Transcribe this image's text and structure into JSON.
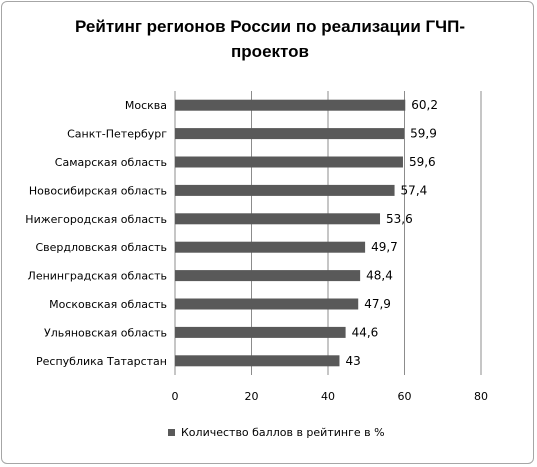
{
  "chart_data": {
    "type": "bar",
    "orientation": "horizontal",
    "title": "Рейтинг регионов России по реализации ГЧП-проектов",
    "title_lines": [
      "Рейтинг регионов России по реализации ГЧП-",
      "проектов"
    ],
    "categories": [
      "Москва",
      "Санкт-Петербург",
      "Самарская область",
      "Новосибирская область",
      "Нижегородская область",
      "Свердловская область",
      "Ленинградская область",
      "Московская область",
      "Ульяновская область",
      "Республика Татарстан"
    ],
    "series": [
      {
        "name": "Количество баллов в рейтинге в %",
        "values": [
          60.2,
          59.9,
          59.6,
          57.4,
          53.6,
          49.7,
          48.4,
          47.9,
          44.6,
          43
        ],
        "value_labels": [
          "60,2",
          "59,9",
          "59,6",
          "57,4",
          "53,6",
          "49,7",
          "48,4",
          "47,9",
          "44,6",
          "43"
        ]
      }
    ],
    "xlim": [
      0,
      80
    ],
    "x_ticks": [
      0,
      20,
      40,
      60,
      80
    ],
    "grid": true,
    "legend_position": "bottom",
    "bar_color": "#595959",
    "grid_color": "#8c8c8c"
  }
}
